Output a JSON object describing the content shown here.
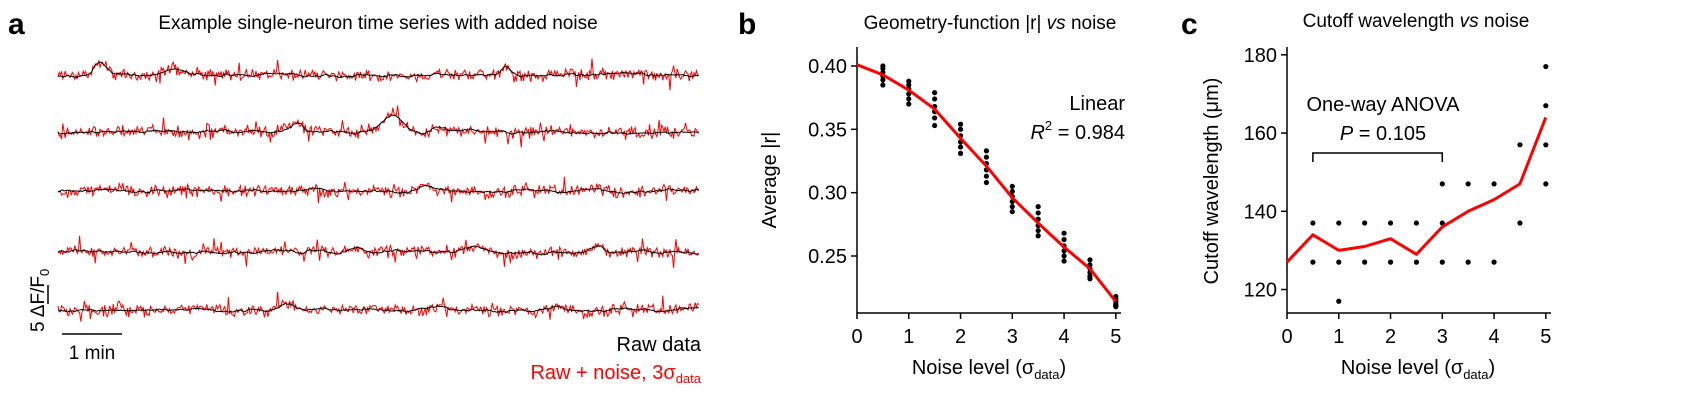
{
  "figure": {
    "panel_a": {
      "letter": "a",
      "title": "Example single-neuron time series with added noise",
      "scalebar_y_label_main": "5 ΔF/F",
      "scalebar_y_label_sub": "0",
      "scalebar_x_label": "1 min",
      "legend": {
        "raw_label": "Raw data",
        "noise_label_main": "Raw + noise, 3σ",
        "noise_label_sub": "data"
      }
    },
    "panel_b": {
      "letter": "b",
      "title": "Geometry-function |r| vs noise",
      "annotation_line1": "Linear",
      "annotation_line2_prefix": "R",
      "annotation_line2_sup": "2",
      "annotation_line2_value": " = 0.984"
    },
    "panel_c": {
      "letter": "c",
      "title": "Cutoff wavelength vs noise",
      "annotation_line1": "One-way ANOVA",
      "annotation_line2": "P = 0.105"
    }
  },
  "colors": {
    "raw": "#000000",
    "noise": "#ff0000",
    "fit": "#ff0000",
    "points": "#000000"
  },
  "chart_data": [
    {
      "panel": "a",
      "type": "line",
      "title": "Example single-neuron time series with added noise",
      "n_traces": 5,
      "series": [
        {
          "name": "Raw data",
          "color": "#000000"
        },
        {
          "name": "Raw + noise, 3σdata",
          "color": "#ff0000"
        }
      ]
    },
    {
      "panel": "b",
      "type": "scatter",
      "title": "Geometry-function |r| vs noise",
      "xlabel": "Noise level (σdata)",
      "ylabel": "Average |r|",
      "xlim": [
        0,
        5.1
      ],
      "ylim": [
        0.205,
        0.415
      ],
      "xticks": [
        0,
        1,
        2,
        3,
        4,
        5
      ],
      "yticks": [
        0.25,
        0.3,
        0.35,
        0.4
      ],
      "ytick_labels": [
        "0.25",
        "0.30",
        "0.35",
        "0.40"
      ],
      "points": {
        "x": [
          0.5,
          1.0,
          1.5,
          2.0,
          2.5,
          3.0,
          3.5,
          4.0,
          4.5,
          5.0
        ],
        "values": [
          [
            0.4,
            0.398,
            0.395,
            0.392,
            0.389,
            0.385
          ],
          [
            0.388,
            0.385,
            0.382,
            0.378,
            0.374,
            0.37
          ],
          [
            0.379,
            0.374,
            0.368,
            0.364,
            0.359,
            0.353
          ],
          [
            0.354,
            0.35,
            0.345,
            0.34,
            0.336,
            0.331
          ],
          [
            0.333,
            0.328,
            0.323,
            0.318,
            0.313,
            0.308
          ],
          [
            0.305,
            0.301,
            0.297,
            0.293,
            0.289,
            0.285
          ],
          [
            0.289,
            0.284,
            0.279,
            0.274,
            0.27,
            0.266
          ],
          [
            0.268,
            0.263,
            0.258,
            0.254,
            0.25,
            0.246
          ],
          [
            0.247,
            0.243,
            0.24,
            0.237,
            0.234,
            0.232
          ],
          [
            0.218,
            0.216,
            0.214,
            0.212,
            0.211,
            0.21
          ]
        ]
      },
      "mean_line": {
        "x": [
          0,
          0.5,
          1.0,
          1.5,
          2.0,
          2.5,
          3.0,
          3.5,
          4.0,
          4.5,
          5.0
        ],
        "y": [
          0.401,
          0.393,
          0.381,
          0.366,
          0.343,
          0.321,
          0.296,
          0.276,
          0.257,
          0.24,
          0.214
        ]
      }
    },
    {
      "panel": "c",
      "type": "scatter",
      "title": "Cutoff wavelength vs noise",
      "xlabel": "Noise level (σdata)",
      "ylabel": "Cutoff wavelength (μm)",
      "xlim": [
        0,
        5.1
      ],
      "ylim": [
        114,
        182
      ],
      "xticks": [
        0,
        1,
        2,
        3,
        4,
        5
      ],
      "yticks": [
        120,
        140,
        160,
        180
      ],
      "points": {
        "x": [
          0.5,
          0.5,
          1.0,
          1.0,
          1.0,
          1.5,
          1.5,
          2.0,
          2.0,
          2.5,
          2.5,
          3.0,
          3.0,
          3.0,
          3.5,
          3.5,
          4.0,
          4.0,
          4.5,
          4.5,
          5.0,
          5.0,
          5.0,
          5.0
        ],
        "y": [
          137,
          127,
          137,
          127,
          117,
          137,
          127,
          137,
          127,
          137,
          127,
          147,
          137,
          127,
          147,
          127,
          147,
          127,
          157,
          137,
          177,
          167,
          157,
          147
        ]
      },
      "mean_line": {
        "x": [
          0,
          0.5,
          1.0,
          1.5,
          2.0,
          2.5,
          3.0,
          3.5,
          4.0,
          4.5,
          5.0
        ],
        "y": [
          127,
          134,
          130,
          131,
          133,
          129,
          136,
          140,
          143,
          147,
          164
        ]
      },
      "bracket": {
        "x_start": 0.5,
        "x_end": 3.0
      }
    }
  ]
}
